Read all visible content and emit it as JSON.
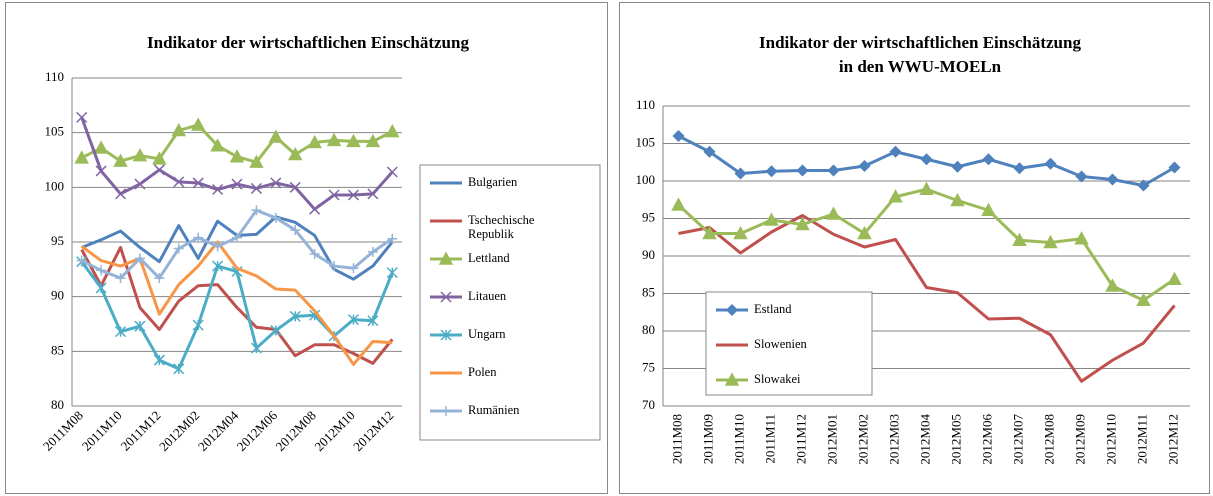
{
  "chart_data": [
    {
      "type": "line",
      "title": [
        "Indikator der wirtschaftlichen Einschätzung"
      ],
      "categories": [
        "2011M08",
        null,
        "2011M10",
        null,
        "2011M12",
        null,
        "2012M02",
        null,
        "2012M04",
        null,
        "2012M06",
        null,
        "2012M08",
        null,
        "2012M10",
        null,
        "2012M12"
      ],
      "ylim": [
        80,
        110
      ],
      "yticks": [
        80,
        85,
        90,
        95,
        100,
        105,
        110
      ],
      "grid": true,
      "legend": "right",
      "series": [
        {
          "name": "Bulgarien",
          "color": "#4F81BD",
          "marker": "none",
          "values": [
            94.5,
            95.2,
            96.0,
            94.5,
            93.2,
            96.5,
            93.5,
            96.9,
            95.6,
            95.7,
            97.3,
            96.8,
            95.6,
            92.5,
            91.6,
            92.8,
            95.0
          ]
        },
        {
          "name": "Tschechische Republik",
          "color": "#C0504D",
          "marker": "none",
          "values": [
            94.3,
            91.0,
            94.5,
            89.0,
            87.0,
            89.6,
            91.0,
            91.1,
            89.0,
            87.2,
            87.0,
            84.6,
            85.6,
            85.6,
            84.8,
            83.9,
            86.1
          ]
        },
        {
          "name": "Lettland",
          "color": "#9BBB59",
          "marker": "triangle",
          "values": [
            102.7,
            103.6,
            102.4,
            102.9,
            102.6,
            105.2,
            105.7,
            103.8,
            102.8,
            102.3,
            104.6,
            103.0,
            104.1,
            104.3,
            104.2,
            104.2,
            105.1
          ]
        },
        {
          "name": "Litauen",
          "color": "#8064A2",
          "marker": "x",
          "values": [
            106.4,
            101.5,
            99.4,
            100.3,
            101.6,
            100.5,
            100.4,
            99.8,
            100.3,
            99.9,
            100.4,
            100.0,
            98.0,
            99.3,
            99.3,
            99.4,
            101.4
          ]
        },
        {
          "name": "Ungarn",
          "color": "#4BACC6",
          "marker": "asterisk",
          "values": [
            93.2,
            90.8,
            86.8,
            87.3,
            84.2,
            83.4,
            87.4,
            92.8,
            92.3,
            85.3,
            86.9,
            88.2,
            88.3,
            86.4,
            87.9,
            87.8,
            92.2
          ]
        },
        {
          "name": "Polen",
          "color": "#F79646",
          "marker": "none",
          "values": [
            94.6,
            93.3,
            92.8,
            93.5,
            88.4,
            91.1,
            92.8,
            95.0,
            92.6,
            91.9,
            90.7,
            90.6,
            88.7,
            86.4,
            83.8,
            85.9,
            85.8
          ]
        },
        {
          "name": "Rumänien",
          "color": "#95B3D7",
          "marker": "plus",
          "values": [
            93.3,
            92.4,
            91.7,
            93.5,
            91.7,
            94.4,
            95.4,
            94.6,
            95.4,
            97.9,
            97.2,
            96.1,
            93.9,
            92.8,
            92.6,
            94.1,
            95.3
          ]
        }
      ]
    },
    {
      "type": "line",
      "title": [
        "Indikator der wirtschaftlichen Einschätzung",
        "in den WWU-MOELn"
      ],
      "categories": [
        "2011M08",
        "2011M09",
        "2011M10",
        "2011M11",
        "2011M12",
        "2012M01",
        "2012M02",
        "2012M03",
        "2012M04",
        "2012M05",
        "2012M06",
        "2012M07",
        "2012M08",
        "2012M09",
        "2012M10",
        "2012M11",
        "2012M12"
      ],
      "ylim": [
        70,
        110
      ],
      "yticks": [
        70,
        75,
        80,
        85,
        90,
        95,
        100,
        105,
        110
      ],
      "grid": true,
      "legend": "bottom-left",
      "series": [
        {
          "name": "Estland",
          "color": "#4F81BD",
          "marker": "diamond",
          "values": [
            106.0,
            103.9,
            101.0,
            101.3,
            101.4,
            101.4,
            102.0,
            103.9,
            102.9,
            101.9,
            102.9,
            101.7,
            102.3,
            100.6,
            100.2,
            99.4,
            101.8
          ]
        },
        {
          "name": "Slowenien",
          "color": "#C0504D",
          "marker": "none",
          "values": [
            93.0,
            93.8,
            90.4,
            93.2,
            95.4,
            92.9,
            91.2,
            92.2,
            85.8,
            85.1,
            81.6,
            81.7,
            79.5,
            73.3,
            76.1,
            78.4,
            83.4
          ]
        },
        {
          "name": "Slowakei",
          "color": "#9BBB59",
          "marker": "triangle",
          "values": [
            96.8,
            93.0,
            93.0,
            94.8,
            94.2,
            95.6,
            93.0,
            97.9,
            98.9,
            97.4,
            96.1,
            92.1,
            91.8,
            92.3,
            86.0,
            84.1,
            86.9
          ]
        }
      ]
    }
  ]
}
